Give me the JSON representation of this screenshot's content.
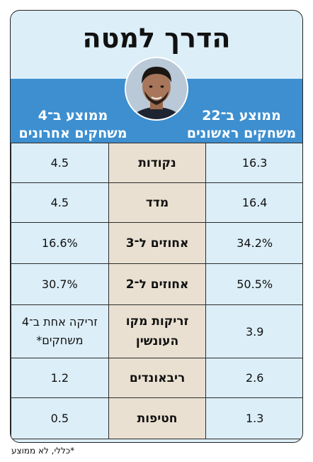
{
  "title": "הדרך למטה",
  "header": {
    "right_label": "ממוצע ב־22 משחקים ראשונים",
    "left_label": "ממוצע ב־4 משחקים אחרונים"
  },
  "rows": [
    {
      "label": "נקודות",
      "first": "16.3",
      "last": "4.5"
    },
    {
      "label": "מדד",
      "first": "16.4",
      "last": "4.5"
    },
    {
      "label": "אחוזים ל־3",
      "first": "34.2%",
      "last": "16.6%"
    },
    {
      "label": "אחוזים ל־2",
      "first": "50.5%",
      "last": "30.7%"
    },
    {
      "label": "זריקות מקו העונשין",
      "first": "3.9",
      "last": "זריקה אחת ב־4 משחקים*"
    },
    {
      "label": "ריבאונדים",
      "first": "2.6",
      "last": "1.2"
    },
    {
      "label": "חטיפות",
      "first": "1.3",
      "last": "0.5"
    }
  ],
  "footnote": "*כללי, לא ממוצע",
  "colors": {
    "band": "#3d8fd0",
    "card_bg": "#dceef8",
    "label_bg": "#e9e0d1"
  },
  "icons": {
    "player_photo": "player-portrait"
  }
}
